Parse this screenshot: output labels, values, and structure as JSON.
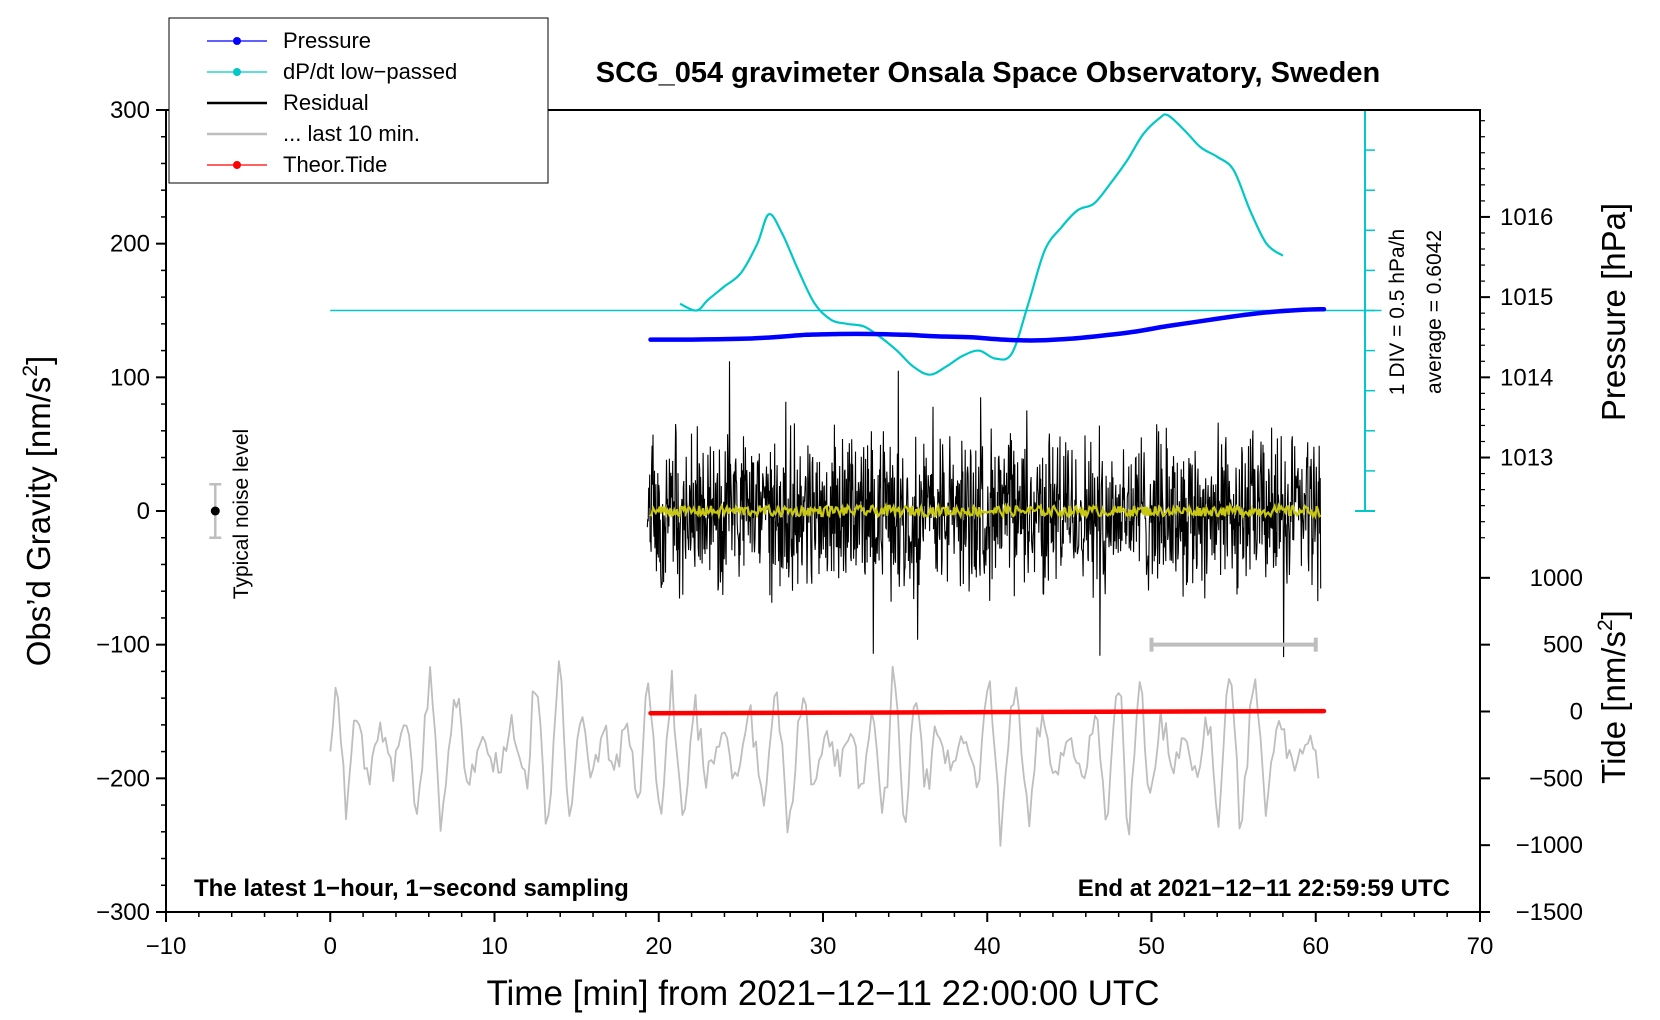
{
  "chart_data": {
    "type": "line",
    "title": "SCG_054 gravimeter Onsala Space Observatory, Sweden",
    "xlabel": "Time [min] from 2021−12−11 22:00:00 UTC",
    "ylabel_left": "Obs’d Gravity [nm/s²]",
    "ylabel_left_main": "Obs’d Gravity [nm/s",
    "ylabel_left_sup": "2",
    "ylabel_left_end": "]",
    "ylabel_right_pressure": "Pressure [hPa]",
    "ylabel_right_tide": "Tide [nm/s²]",
    "ylabel_right_tide_main": "Tide [nm/s",
    "ylabel_right_tide_sup": "2",
    "ylabel_right_tide_end": "]",
    "xlim": [
      -10,
      70
    ],
    "ylim": [
      -300,
      300
    ],
    "xticks": [
      -10,
      0,
      10,
      20,
      30,
      40,
      50,
      60,
      70
    ],
    "xtick_labels": [
      "−10",
      "0",
      "10",
      "20",
      "30",
      "40",
      "50",
      "60",
      "70"
    ],
    "yticks": [
      -300,
      -200,
      -100,
      0,
      100,
      200,
      300
    ],
    "ytick_labels": [
      "−300",
      "−200",
      "−100",
      "0",
      "100",
      "200",
      "300"
    ],
    "pressure_axis": {
      "ticks": [
        1013,
        1014,
        1015,
        1016
      ],
      "tick_labels": [
        "1013",
        "1014",
        "1015",
        "1016"
      ],
      "note": "1 hPa per 60 nm/s² of gravity axis, 1014 at y=100"
    },
    "tide_axis": {
      "ticks": [
        -1500,
        -1000,
        -500,
        0,
        500,
        1000
      ],
      "tick_labels": [
        "−1500",
        "−1000",
        "−500",
        "0",
        "500",
        "1000"
      ],
      "note": "0 at y=-150, 500 nm/s² per 50 units of gravity axis"
    },
    "dpdt_scale": {
      "label_div": "1 DIV = 0.5 hPa/h",
      "label_avg": "average = 0.6042",
      "baseline_y": 150,
      "x": 63
    },
    "legend": {
      "placement": "top-left",
      "entries": [
        {
          "label": "Pressure",
          "color": "#0000ff",
          "marker": "dot"
        },
        {
          "label": "dP/dt low−passed",
          "color": "#00c8c8",
          "marker": "dot"
        },
        {
          "label": "Residual",
          "color": "#000000",
          "marker": "none"
        },
        {
          "label": "... last 10 min.",
          "color": "#bebebe",
          "marker": "none"
        },
        {
          "label": "Theor.Tide",
          "color": "#ff0000",
          "marker": "dot"
        }
      ]
    },
    "noise_marker": {
      "x": -7,
      "y": 0,
      "err": 20,
      "label": "Typical noise level"
    },
    "last10_bar": {
      "x_start": 50,
      "x_end": 60,
      "y": -100
    },
    "annotations": {
      "bottom_left": "The latest 1−hour, 1−second sampling",
      "bottom_right": "End at 2021−12−11 22:59:59 UTC"
    },
    "series": [
      {
        "name": "Pressure",
        "unit": "hPa",
        "color": "#0000ff",
        "x": [
          19.5,
          22,
          25,
          27,
          29,
          31,
          33,
          35,
          37,
          39,
          41,
          43,
          45,
          47,
          49,
          51,
          53,
          55,
          57,
          59,
          60.5
        ],
        "values": [
          1014.47,
          1014.47,
          1014.48,
          1014.5,
          1014.53,
          1014.54,
          1014.54,
          1014.53,
          1014.51,
          1014.5,
          1014.47,
          1014.46,
          1014.48,
          1014.52,
          1014.57,
          1014.64,
          1014.7,
          1014.76,
          1014.81,
          1014.84,
          1014.85
        ]
      },
      {
        "name": "dP/dt low−passed",
        "unit": "gravity-axis units",
        "color": "#00c8c8",
        "x": [
          21.3,
          22.3,
          23,
          24,
          25,
          26,
          26.7,
          27.5,
          28.5,
          29.5,
          30.5,
          31.5,
          32.5,
          33.5,
          34.5,
          35.5,
          36.5,
          37.5,
          38.5,
          39.5,
          40.5,
          41.5,
          42.5,
          43.5,
          44.5,
          45.5,
          46.5,
          47.5,
          48.5,
          49.5,
          50.5,
          51,
          52,
          53,
          54,
          55,
          56,
          57,
          58
        ],
        "values": [
          155,
          150,
          158,
          168,
          178,
          200,
          222,
          208,
          180,
          155,
          143,
          140,
          138,
          130,
          120,
          108,
          102,
          108,
          116,
          120,
          114,
          118,
          155,
          195,
          212,
          225,
          230,
          245,
          262,
          282,
          294,
          296,
          285,
          272,
          265,
          255,
          225,
          200,
          191
        ]
      },
      {
        "name": "Residual",
        "unit": "nm/s²",
        "color": "#000000",
        "x_range": [
          19.3,
          60.3
        ],
        "amplitude": 55,
        "description": "1-second residual noise oscillating roughly ±55 nm/s², peaks to ~110 and ~−120"
      },
      {
        "name": "Residual low−passed",
        "unit": "nm/s²",
        "color": "#c8c814",
        "x_range": [
          19.5,
          60.3
        ],
        "amplitude": 4
      },
      {
        "name": "... last 10 min.",
        "unit": "nm/s² (offset)",
        "color": "#bebebe",
        "x_range": [
          0,
          60.3
        ],
        "center": -180,
        "amplitude": 60
      },
      {
        "name": "Theor.Tide",
        "unit": "nm/s²",
        "color": "#ff0000",
        "x": [
          19.5,
          60.5
        ],
        "values": [
          -13,
          3
        ]
      }
    ]
  }
}
